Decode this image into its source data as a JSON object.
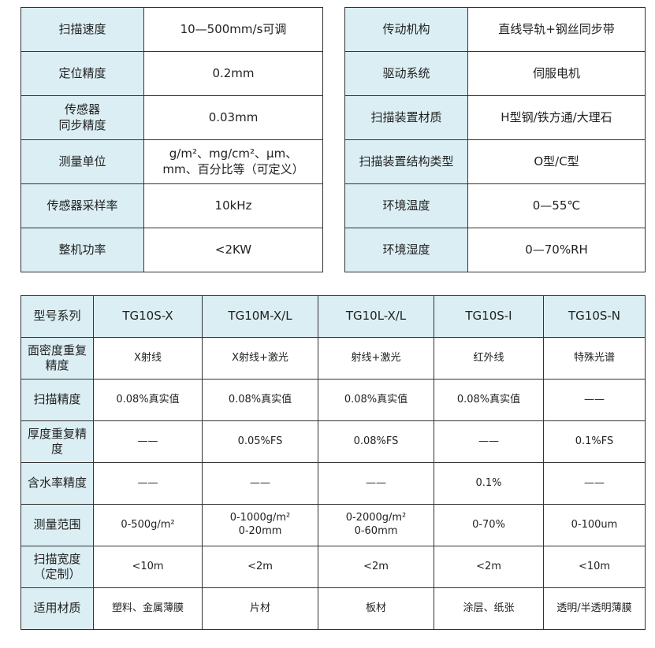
{
  "left_table": [
    {
      "label": "扫描速度",
      "value": "10—500mm/s可调"
    },
    {
      "label": "定位精度",
      "value": "0.2mm"
    },
    {
      "label": "传感器\n同步精度",
      "value": "0.03mm"
    },
    {
      "label": "测量单位",
      "value": "g/m²、mg/cm²、μm、\nmm、百分比等（可定义）"
    },
    {
      "label": "传感器采样率",
      "value": "10kHz"
    },
    {
      "label": "整机功率",
      "value": "<2KW"
    }
  ],
  "right_table": [
    {
      "label": "传动机构",
      "value": "直线导轨+钢丝同步带"
    },
    {
      "label": "驱动系统",
      "value": "伺服电机"
    },
    {
      "label": "扫描装置材质",
      "value": "H型钢/铁方通/大理石"
    },
    {
      "label": "扫描装置结构类型",
      "value": "O型/C型"
    },
    {
      "label": "环境温度",
      "value": "0—55℃"
    },
    {
      "label": "环境湿度",
      "value": "0—70%RH"
    }
  ],
  "model_table": {
    "header": [
      "型号系列",
      "TG10S-X",
      "TG10M-X/L",
      "TG10L-X/L",
      "TG10S-I",
      "TG10S-N"
    ],
    "rows": [
      [
        "面密度重复精度",
        "X射线",
        "X射线+激光",
        "射线+激光",
        "红外线",
        "特殊光谱"
      ],
      [
        "扫描精度",
        "0.08%真实值",
        "0.08%真实值",
        "0.08%真实值",
        "0.08%真实值",
        "——"
      ],
      [
        "厚度重复精度",
        "——",
        "0.05%FS",
        "0.08%FS",
        "——",
        "0.1%FS"
      ],
      [
        "含水率精度",
        "——",
        "——",
        "——",
        "0.1%",
        "——"
      ],
      [
        "测量范围",
        "0-500g/m²",
        "0-1000g/m²\n0-20mm",
        "0-2000g/m²\n0-60mm",
        "0-70%",
        "0-100um"
      ],
      [
        "扫描宽度（定制）",
        "<10m",
        "<2m",
        "<2m",
        "<2m",
        "<10m"
      ],
      [
        "适用材质",
        "塑料、金属薄膜",
        "片材",
        "板材",
        "涂层、纸张",
        "透明/半透明薄膜"
      ]
    ]
  },
  "colors": {
    "label_bg": "#dbeef3",
    "border": "#333333"
  }
}
